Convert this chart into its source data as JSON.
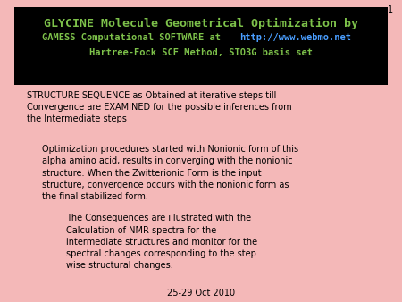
{
  "bg_color": "#f4b8b8",
  "header_bg": "#000000",
  "header_line1": "GLYCINE Molecule Geometrical Optimization by",
  "header_line2_pre": "GAMESS Computational SOFTWARE at ",
  "header_line2_url": "http://www.webmo.net",
  "header_line3": "Hartree-Fock SCF Method, STO3G basis set",
  "header_text_color": "#7dc14a",
  "url_color": "#4a9eff",
  "body_text_color": "#000000",
  "para1": "STRUCTURE SEQUENCE as Obtained at iterative steps till\nConvergence are EXAMINED for the possible inferences from\nthe Intermediate steps",
  "para2": "Optimization procedures started with Nonionic form of this\nalpha amino acid, results in converging with the nonionic\nstructure. When the Zwitterionic Form is the input\nstructure, convergence occurs with the nonionic form as\nthe final stabilized form.",
  "para3": "The Consequences are illustrated with the\nCalculation of NMR spectra for the\nintermediate structures and monitor for the\nspectral changes corresponding to the step\nwise structural changes.",
  "footer": "25-29 Oct 2010",
  "page_num": "1"
}
